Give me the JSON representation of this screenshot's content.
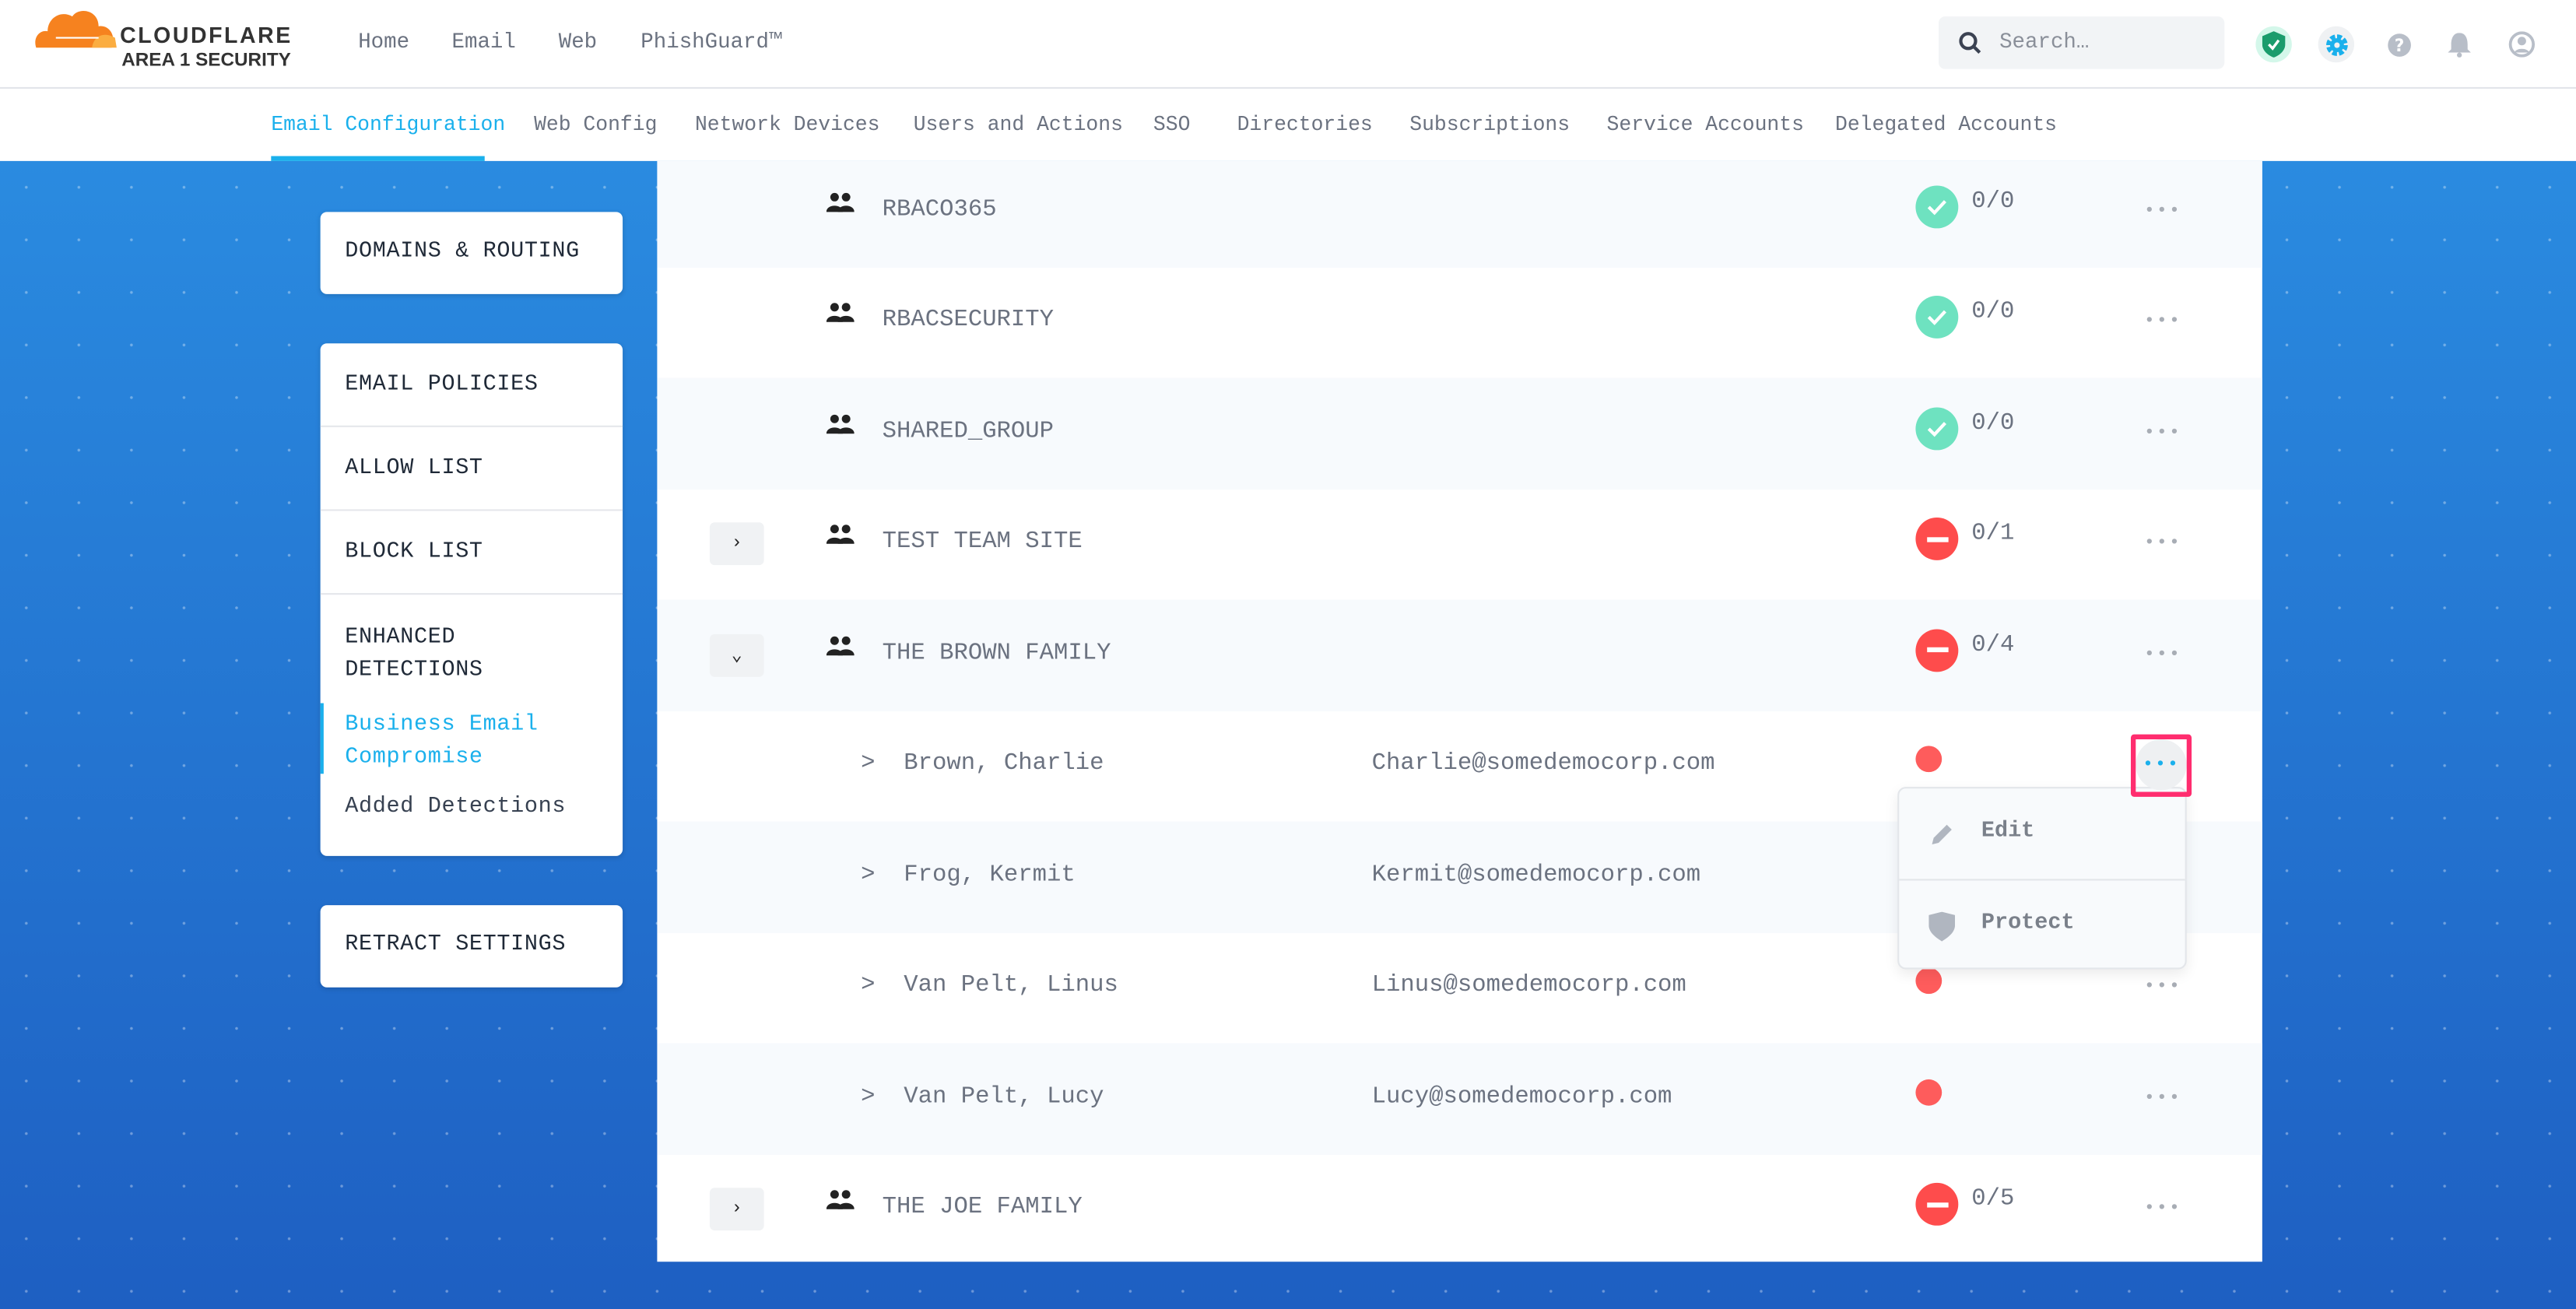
{
  "brand": {
    "name": "CLOUDFLARE",
    "sub": "AREA 1 SECURITY",
    "colors": {
      "orange": "#f6821f",
      "accent": "#1ab0ec",
      "highlight": "#ff2d6f"
    }
  },
  "topnav": [
    "Home",
    "Email",
    "Web",
    "PhishGuard™"
  ],
  "search": {
    "placeholder": "Search…"
  },
  "top_icons": [
    "shield-check-icon",
    "gear-icon",
    "help-icon",
    "bell-icon",
    "user-icon"
  ],
  "tabs": [
    {
      "label": "Email Configuration",
      "active": true
    },
    {
      "label": "Web Config"
    },
    {
      "label": "Network Devices"
    },
    {
      "label": "Users and Actions"
    },
    {
      "label": "SSO"
    },
    {
      "label": "Directories"
    },
    {
      "label": "Subscriptions"
    },
    {
      "label": "Service Accounts"
    },
    {
      "label": "Delegated Accounts"
    }
  ],
  "sidebar": {
    "domains": "DOMAINS & ROUTING",
    "policies": "EMAIL POLICIES",
    "allow": "ALLOW LIST",
    "block": "BLOCK LIST",
    "enhanced": "ENHANCED",
    "enhanced2": "DETECTIONS",
    "bec1": "Business Email",
    "bec2": "Compromise",
    "added": "Added Detections",
    "retract": "RETRACT SETTINGS"
  },
  "rows": [
    {
      "type": "group",
      "name": "RBACO365",
      "status": "ok",
      "count": "0/0"
    },
    {
      "type": "group",
      "name": "RBACSECURITY",
      "status": "ok",
      "count": "0/0"
    },
    {
      "type": "group",
      "name": "SHARED_GROUP",
      "status": "ok",
      "count": "0/0"
    },
    {
      "type": "group",
      "name": "TEST TEAM SITE",
      "status": "blocked",
      "count": "0/1",
      "expand": "›"
    },
    {
      "type": "group",
      "name": "THE BROWN FAMILY",
      "status": "blocked",
      "count": "0/4",
      "expand": "⌄"
    },
    {
      "type": "member",
      "name": "Brown, Charlie",
      "email": "Charlie@somedemocorp.com"
    },
    {
      "type": "member",
      "name": "Frog, Kermit",
      "email": "Kermit@somedemocorp.com"
    },
    {
      "type": "member",
      "name": "Van Pelt, Linus",
      "email": "Linus@somedemocorp.com"
    },
    {
      "type": "member",
      "name": "Van Pelt, Lucy",
      "email": "Lucy@somedemocorp.com"
    },
    {
      "type": "group",
      "name": "THE JOE FAMILY",
      "status": "blocked",
      "count": "0/5",
      "expand": "›"
    }
  ],
  "member_prefix": ">",
  "more": "•••",
  "menu": {
    "edit": "Edit",
    "protect": "Protect"
  }
}
